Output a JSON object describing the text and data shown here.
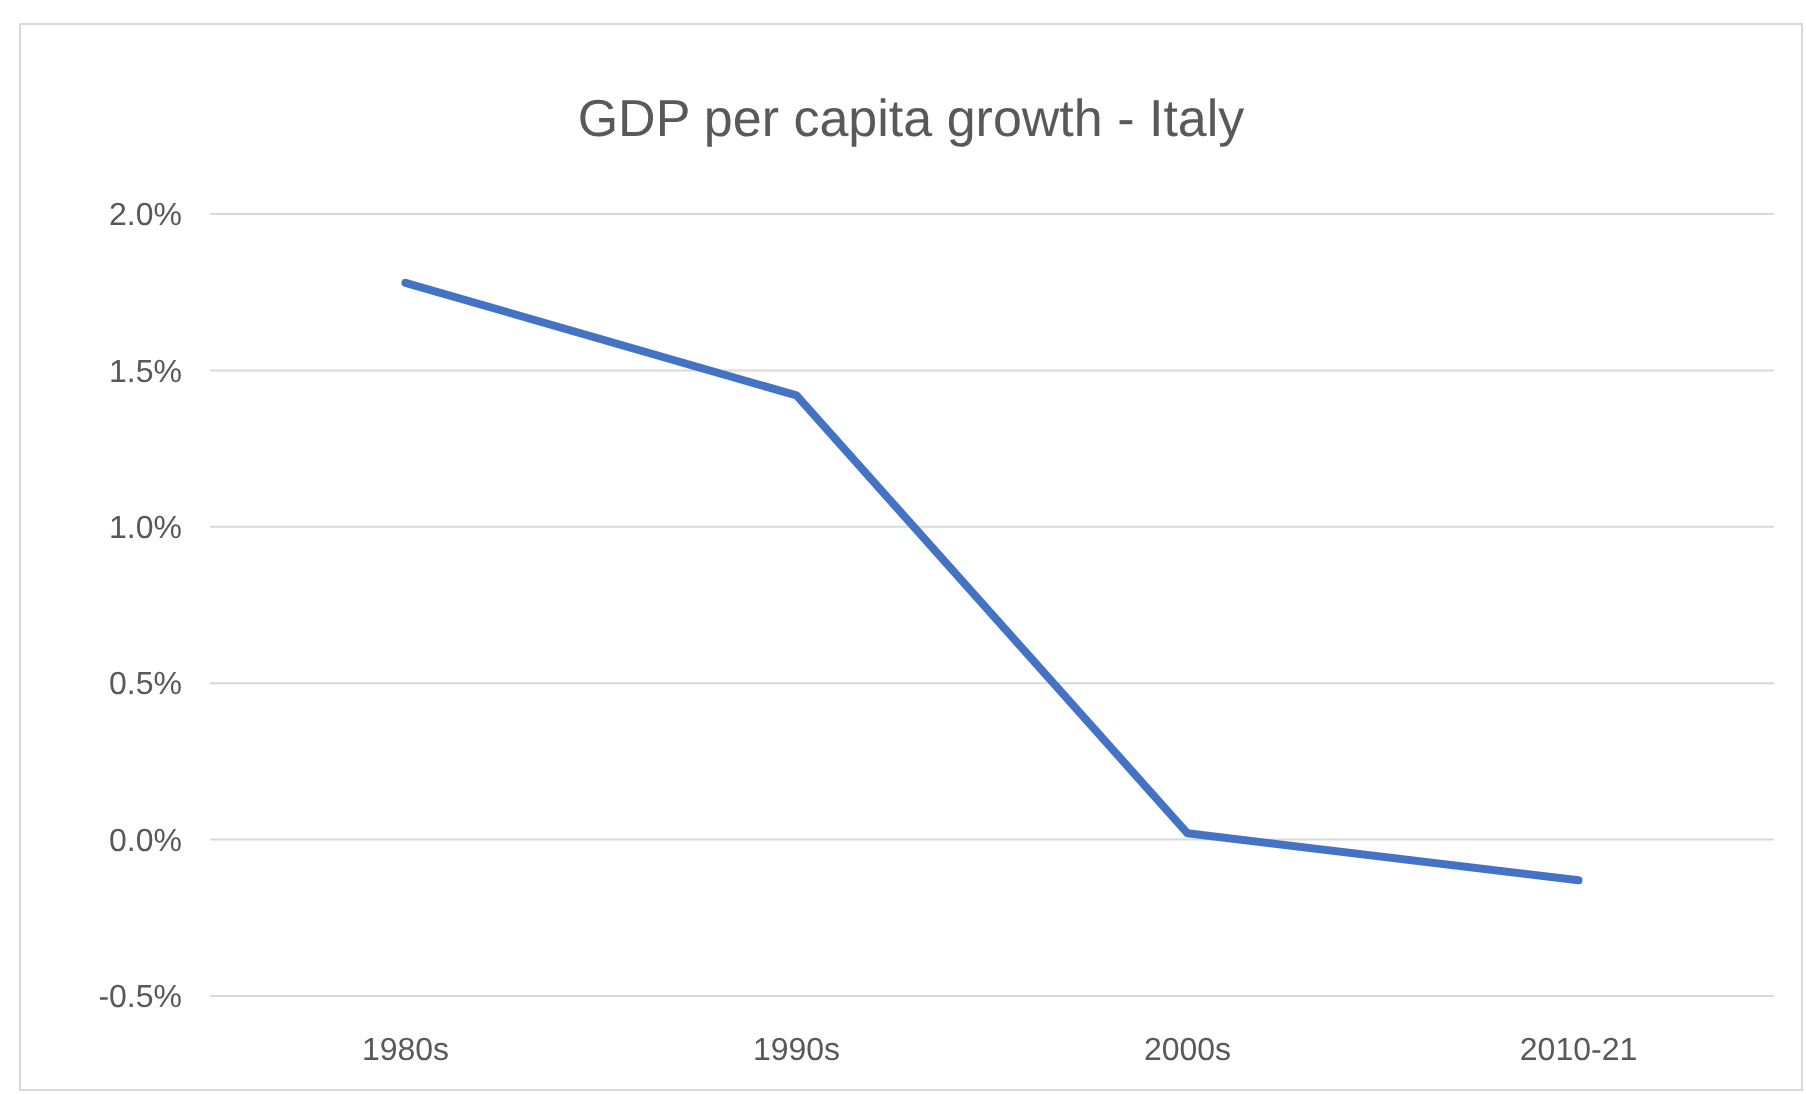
{
  "chart_data": {
    "type": "line",
    "title": "GDP per capita growth - Italy",
    "categories": [
      "1980s",
      "1990s",
      "2000s",
      "2010-21"
    ],
    "series": [
      {
        "color": "#4472c4",
        "values": [
          1.78,
          1.42,
          0.02,
          -0.13
        ]
      }
    ],
    "ylim": [
      -0.5,
      2.0
    ],
    "yticks": [
      {
        "value": -0.5,
        "label": "-0.5%"
      },
      {
        "value": 0,
        "label": "0.0%"
      },
      {
        "value": 0.5,
        "label": "0.5%"
      },
      {
        "value": 1,
        "label": "1.0%"
      },
      {
        "value": 1.5,
        "label": "1.5%"
      },
      {
        "value": 2,
        "label": "2.0%"
      }
    ],
    "grid": "y",
    "marker": "none",
    "line_style": "solid"
  }
}
